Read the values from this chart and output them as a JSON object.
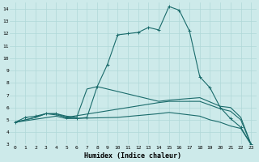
{
  "xlabel": "Humidex (Indice chaleur)",
  "background_color": "#cdeaea",
  "line_color": "#1a6b6b",
  "grid_color": "#b0d8d8",
  "xlim": [
    -0.5,
    23.5
  ],
  "ylim": [
    3,
    14.5
  ],
  "xticks": [
    0,
    1,
    2,
    3,
    4,
    5,
    6,
    7,
    8,
    9,
    10,
    11,
    12,
    13,
    14,
    15,
    16,
    17,
    18,
    19,
    20,
    21,
    22,
    23
  ],
  "yticks": [
    3,
    4,
    5,
    6,
    7,
    8,
    9,
    10,
    11,
    12,
    13,
    14
  ],
  "series": [
    {
      "x": [
        0,
        1,
        2,
        3,
        4,
        5,
        6,
        7,
        8,
        9,
        10,
        11,
        12,
        13,
        14,
        15,
        16,
        17,
        18,
        19,
        20,
        21,
        22,
        23
      ],
      "y": [
        4.8,
        5.2,
        5.3,
        5.5,
        5.5,
        5.2,
        5.1,
        5.2,
        7.7,
        9.5,
        11.9,
        12.0,
        12.1,
        12.5,
        12.3,
        14.2,
        13.9,
        12.2,
        8.5,
        7.6,
        6.0,
        5.1,
        4.4,
        3.0
      ],
      "marker": "+"
    },
    {
      "x": [
        0,
        2,
        3,
        4,
        5,
        6,
        7,
        8,
        14,
        15,
        18,
        20,
        21,
        22,
        23
      ],
      "y": [
        4.8,
        5.2,
        5.5,
        5.5,
        5.3,
        5.2,
        7.5,
        7.7,
        6.5,
        6.6,
        6.8,
        6.1,
        6.0,
        5.2,
        3.0
      ],
      "marker": null
    },
    {
      "x": [
        0,
        2,
        3,
        4,
        5,
        14,
        15,
        18,
        20,
        21,
        22,
        23
      ],
      "y": [
        4.8,
        5.2,
        5.5,
        5.4,
        5.2,
        6.4,
        6.5,
        6.5,
        5.9,
        5.7,
        5.0,
        3.0
      ],
      "marker": null
    },
    {
      "x": [
        0,
        4,
        5,
        10,
        14,
        15,
        16,
        18,
        19,
        20,
        21,
        22,
        23
      ],
      "y": [
        4.8,
        5.3,
        5.1,
        5.2,
        5.5,
        5.6,
        5.5,
        5.3,
        5.0,
        4.8,
        4.5,
        4.3,
        3.0
      ],
      "marker": null
    }
  ]
}
